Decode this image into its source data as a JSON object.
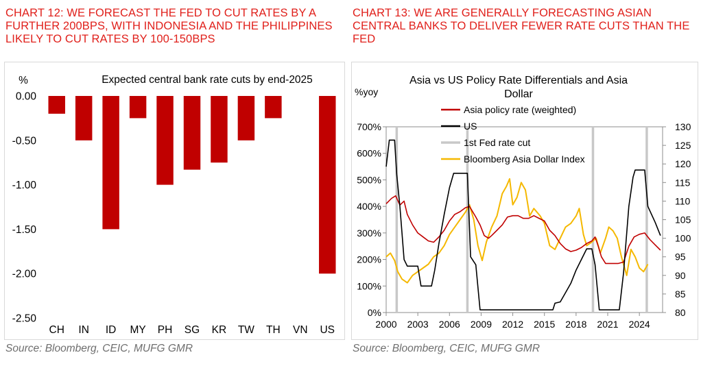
{
  "left": {
    "heading": "CHART 12: WE FORECAST THE FED TO CUT RATES BY A FURTHER 200BPS, WITH INDONESIA AND THE PHILIPPINES LIKELY TO CUT RATES BY 100-150BPS",
    "source": "Source: Bloomberg, CEIC, MUFG GMR"
  },
  "right": {
    "heading": "CHART 13: WE ARE GENERALLY FORECASTING ASIAN CENTRAL BANKS TO DELIVER FEWER RATE CUTS THAN THE FED",
    "source": "Source: Bloomberg, CEIC, MUFG GMR"
  },
  "chart_data": [
    {
      "type": "bar",
      "title": "Expected central bank rate cuts by end-2025",
      "ylabel": "%",
      "xlabel": "",
      "categories": [
        "CH",
        "IN",
        "ID",
        "MY",
        "PH",
        "SG",
        "KR",
        "TW",
        "TH",
        "VN",
        "US"
      ],
      "values": [
        -0.2,
        -0.5,
        -1.5,
        -0.25,
        -1.0,
        -0.83,
        -0.75,
        -0.5,
        -0.25,
        0.0,
        -2.0
      ],
      "ylim": [
        -2.5,
        0.0
      ],
      "yticks": [
        "0.00",
        "-0.50",
        "-1.00",
        "-1.50",
        "-2.00",
        "-2.50"
      ],
      "bar_color": "#c00000",
      "grid": false
    },
    {
      "type": "line",
      "title": "Asia vs US Policy Rate Differentials and Asia Dollar",
      "ylabel": "%yoy",
      "xlim": [
        2000,
        2026.2
      ],
      "xticks": [
        "2000",
        "2003",
        "2006",
        "2009",
        "2012",
        "2015",
        "2018",
        "2021",
        "2024"
      ],
      "ylim": [
        0,
        700
      ],
      "yticks": [
        "0%",
        "100%",
        "200%",
        "300%",
        "400%",
        "500%",
        "600%",
        "700%"
      ],
      "y2lim": [
        80,
        130
      ],
      "y2ticks": [
        "80",
        "85",
        "90",
        "95",
        "100",
        "105",
        "110",
        "115",
        "120",
        "125",
        "130"
      ],
      "legend_position": "top-left",
      "grid": false,
      "series": [
        {
          "name": "Asia policy rate (weighted)",
          "axis": "left",
          "color": "#c00000",
          "points": [
            [
              2000.0,
              410
            ],
            [
              2000.5,
              430
            ],
            [
              2000.9,
              440
            ],
            [
              2001.3,
              405
            ],
            [
              2001.7,
              420
            ],
            [
              2002.0,
              370
            ],
            [
              2002.5,
              330
            ],
            [
              2003.0,
              300
            ],
            [
              2003.5,
              285
            ],
            [
              2004.0,
              270
            ],
            [
              2004.5,
              265
            ],
            [
              2005.0,
              285
            ],
            [
              2005.5,
              310
            ],
            [
              2006.0,
              345
            ],
            [
              2006.5,
              370
            ],
            [
              2007.0,
              380
            ],
            [
              2007.5,
              395
            ],
            [
              2007.9,
              400
            ],
            [
              2008.2,
              380
            ],
            [
              2008.5,
              360
            ],
            [
              2008.9,
              330
            ],
            [
              2009.3,
              290
            ],
            [
              2009.7,
              280
            ],
            [
              2010.0,
              290
            ],
            [
              2010.5,
              310
            ],
            [
              2011.0,
              330
            ],
            [
              2011.5,
              360
            ],
            [
              2012.0,
              365
            ],
            [
              2012.5,
              365
            ],
            [
              2013.0,
              355
            ],
            [
              2013.5,
              355
            ],
            [
              2014.0,
              365
            ],
            [
              2014.5,
              355
            ],
            [
              2015.0,
              345
            ],
            [
              2015.5,
              310
            ],
            [
              2016.0,
              290
            ],
            [
              2016.5,
              260
            ],
            [
              2017.0,
              240
            ],
            [
              2017.5,
              230
            ],
            [
              2018.0,
              235
            ],
            [
              2018.5,
              245
            ],
            [
              2019.0,
              260
            ],
            [
              2019.5,
              270
            ],
            [
              2019.8,
              285
            ],
            [
              2020.1,
              250
            ],
            [
              2020.4,
              210
            ],
            [
              2020.8,
              185
            ],
            [
              2021.5,
              185
            ],
            [
              2022.0,
              185
            ],
            [
              2022.5,
              190
            ],
            [
              2023.0,
              250
            ],
            [
              2023.5,
              285
            ],
            [
              2024.0,
              295
            ],
            [
              2024.5,
              300
            ],
            [
              2025.0,
              275
            ],
            [
              2025.5,
              255
            ],
            [
              2026.0,
              235
            ]
          ]
        },
        {
          "name": "US",
          "axis": "left",
          "color": "#000000",
          "points": [
            [
              2000.0,
              550
            ],
            [
              2000.3,
              650
            ],
            [
              2000.8,
              650
            ],
            [
              2001.0,
              520
            ],
            [
              2001.3,
              400
            ],
            [
              2001.7,
              200
            ],
            [
              2002.0,
              175
            ],
            [
              2003.0,
              175
            ],
            [
              2003.3,
              100
            ],
            [
              2004.3,
              100
            ],
            [
              2004.6,
              160
            ],
            [
              2005.0,
              260
            ],
            [
              2005.5,
              370
            ],
            [
              2006.0,
              470
            ],
            [
              2006.4,
              525
            ],
            [
              2007.7,
              525
            ],
            [
              2008.0,
              210
            ],
            [
              2008.5,
              180
            ],
            [
              2008.9,
              10
            ],
            [
              2015.8,
              10
            ],
            [
              2016.0,
              35
            ],
            [
              2016.5,
              40
            ],
            [
              2017.0,
              75
            ],
            [
              2017.5,
              110
            ],
            [
              2018.0,
              160
            ],
            [
              2018.5,
              200
            ],
            [
              2019.0,
              240
            ],
            [
              2019.5,
              240
            ],
            [
              2019.8,
              180
            ],
            [
              2020.2,
              10
            ],
            [
              2022.1,
              10
            ],
            [
              2022.5,
              150
            ],
            [
              2023.0,
              400
            ],
            [
              2023.4,
              510
            ],
            [
              2023.6,
              537
            ],
            [
              2024.5,
              537
            ],
            [
              2024.8,
              400
            ],
            [
              2025.5,
              340
            ],
            [
              2026.0,
              290
            ]
          ]
        },
        {
          "name": "1st Fed rate cut",
          "type": "vlines",
          "color": "#c8c8c8",
          "x": [
            2001.0,
            2007.7,
            2019.6,
            2024.7
          ]
        },
        {
          "name": "Bloomberg Asia Dollar Index",
          "axis": "right",
          "color": "#f5b800",
          "points": [
            [
              2000.0,
              95
            ],
            [
              2000.4,
              96
            ],
            [
              2000.8,
              94
            ],
            [
              2001.1,
              91
            ],
            [
              2001.5,
              89
            ],
            [
              2002.0,
              88
            ],
            [
              2002.5,
              90
            ],
            [
              2003.0,
              91
            ],
            [
              2003.5,
              92
            ],
            [
              2004.0,
              93
            ],
            [
              2004.5,
              95
            ],
            [
              2005.0,
              96
            ],
            [
              2005.5,
              98
            ],
            [
              2006.0,
              101
            ],
            [
              2006.5,
              103
            ],
            [
              2007.0,
              105
            ],
            [
              2007.5,
              107
            ],
            [
              2007.9,
              109
            ],
            [
              2008.3,
              105
            ],
            [
              2008.7,
              98
            ],
            [
              2009.1,
              94
            ],
            [
              2009.5,
              99
            ],
            [
              2010.0,
              103
            ],
            [
              2010.5,
              106
            ],
            [
              2011.0,
              112
            ],
            [
              2011.4,
              114
            ],
            [
              2011.7,
              116
            ],
            [
              2012.0,
              109
            ],
            [
              2012.4,
              111
            ],
            [
              2012.8,
              115
            ],
            [
              2013.2,
              113
            ],
            [
              2013.6,
              106
            ],
            [
              2014.0,
              108
            ],
            [
              2014.6,
              106
            ],
            [
              2015.0,
              104
            ],
            [
              2015.5,
              98
            ],
            [
              2016.0,
              97
            ],
            [
              2016.5,
              100
            ],
            [
              2017.0,
              103
            ],
            [
              2017.5,
              104
            ],
            [
              2018.0,
              106
            ],
            [
              2018.3,
              108
            ],
            [
              2018.7,
              101
            ],
            [
              2019.0,
              98
            ],
            [
              2019.5,
              99
            ],
            [
              2019.9,
              100
            ],
            [
              2020.3,
              96
            ],
            [
              2020.8,
              100
            ],
            [
              2021.1,
              103
            ],
            [
              2021.5,
              102
            ],
            [
              2021.9,
              100
            ],
            [
              2022.3,
              95
            ],
            [
              2022.8,
              90
            ],
            [
              2023.2,
              97
            ],
            [
              2023.6,
              95
            ],
            [
              2024.0,
              92
            ],
            [
              2024.4,
              91
            ],
            [
              2024.8,
              93
            ]
          ]
        }
      ]
    }
  ]
}
